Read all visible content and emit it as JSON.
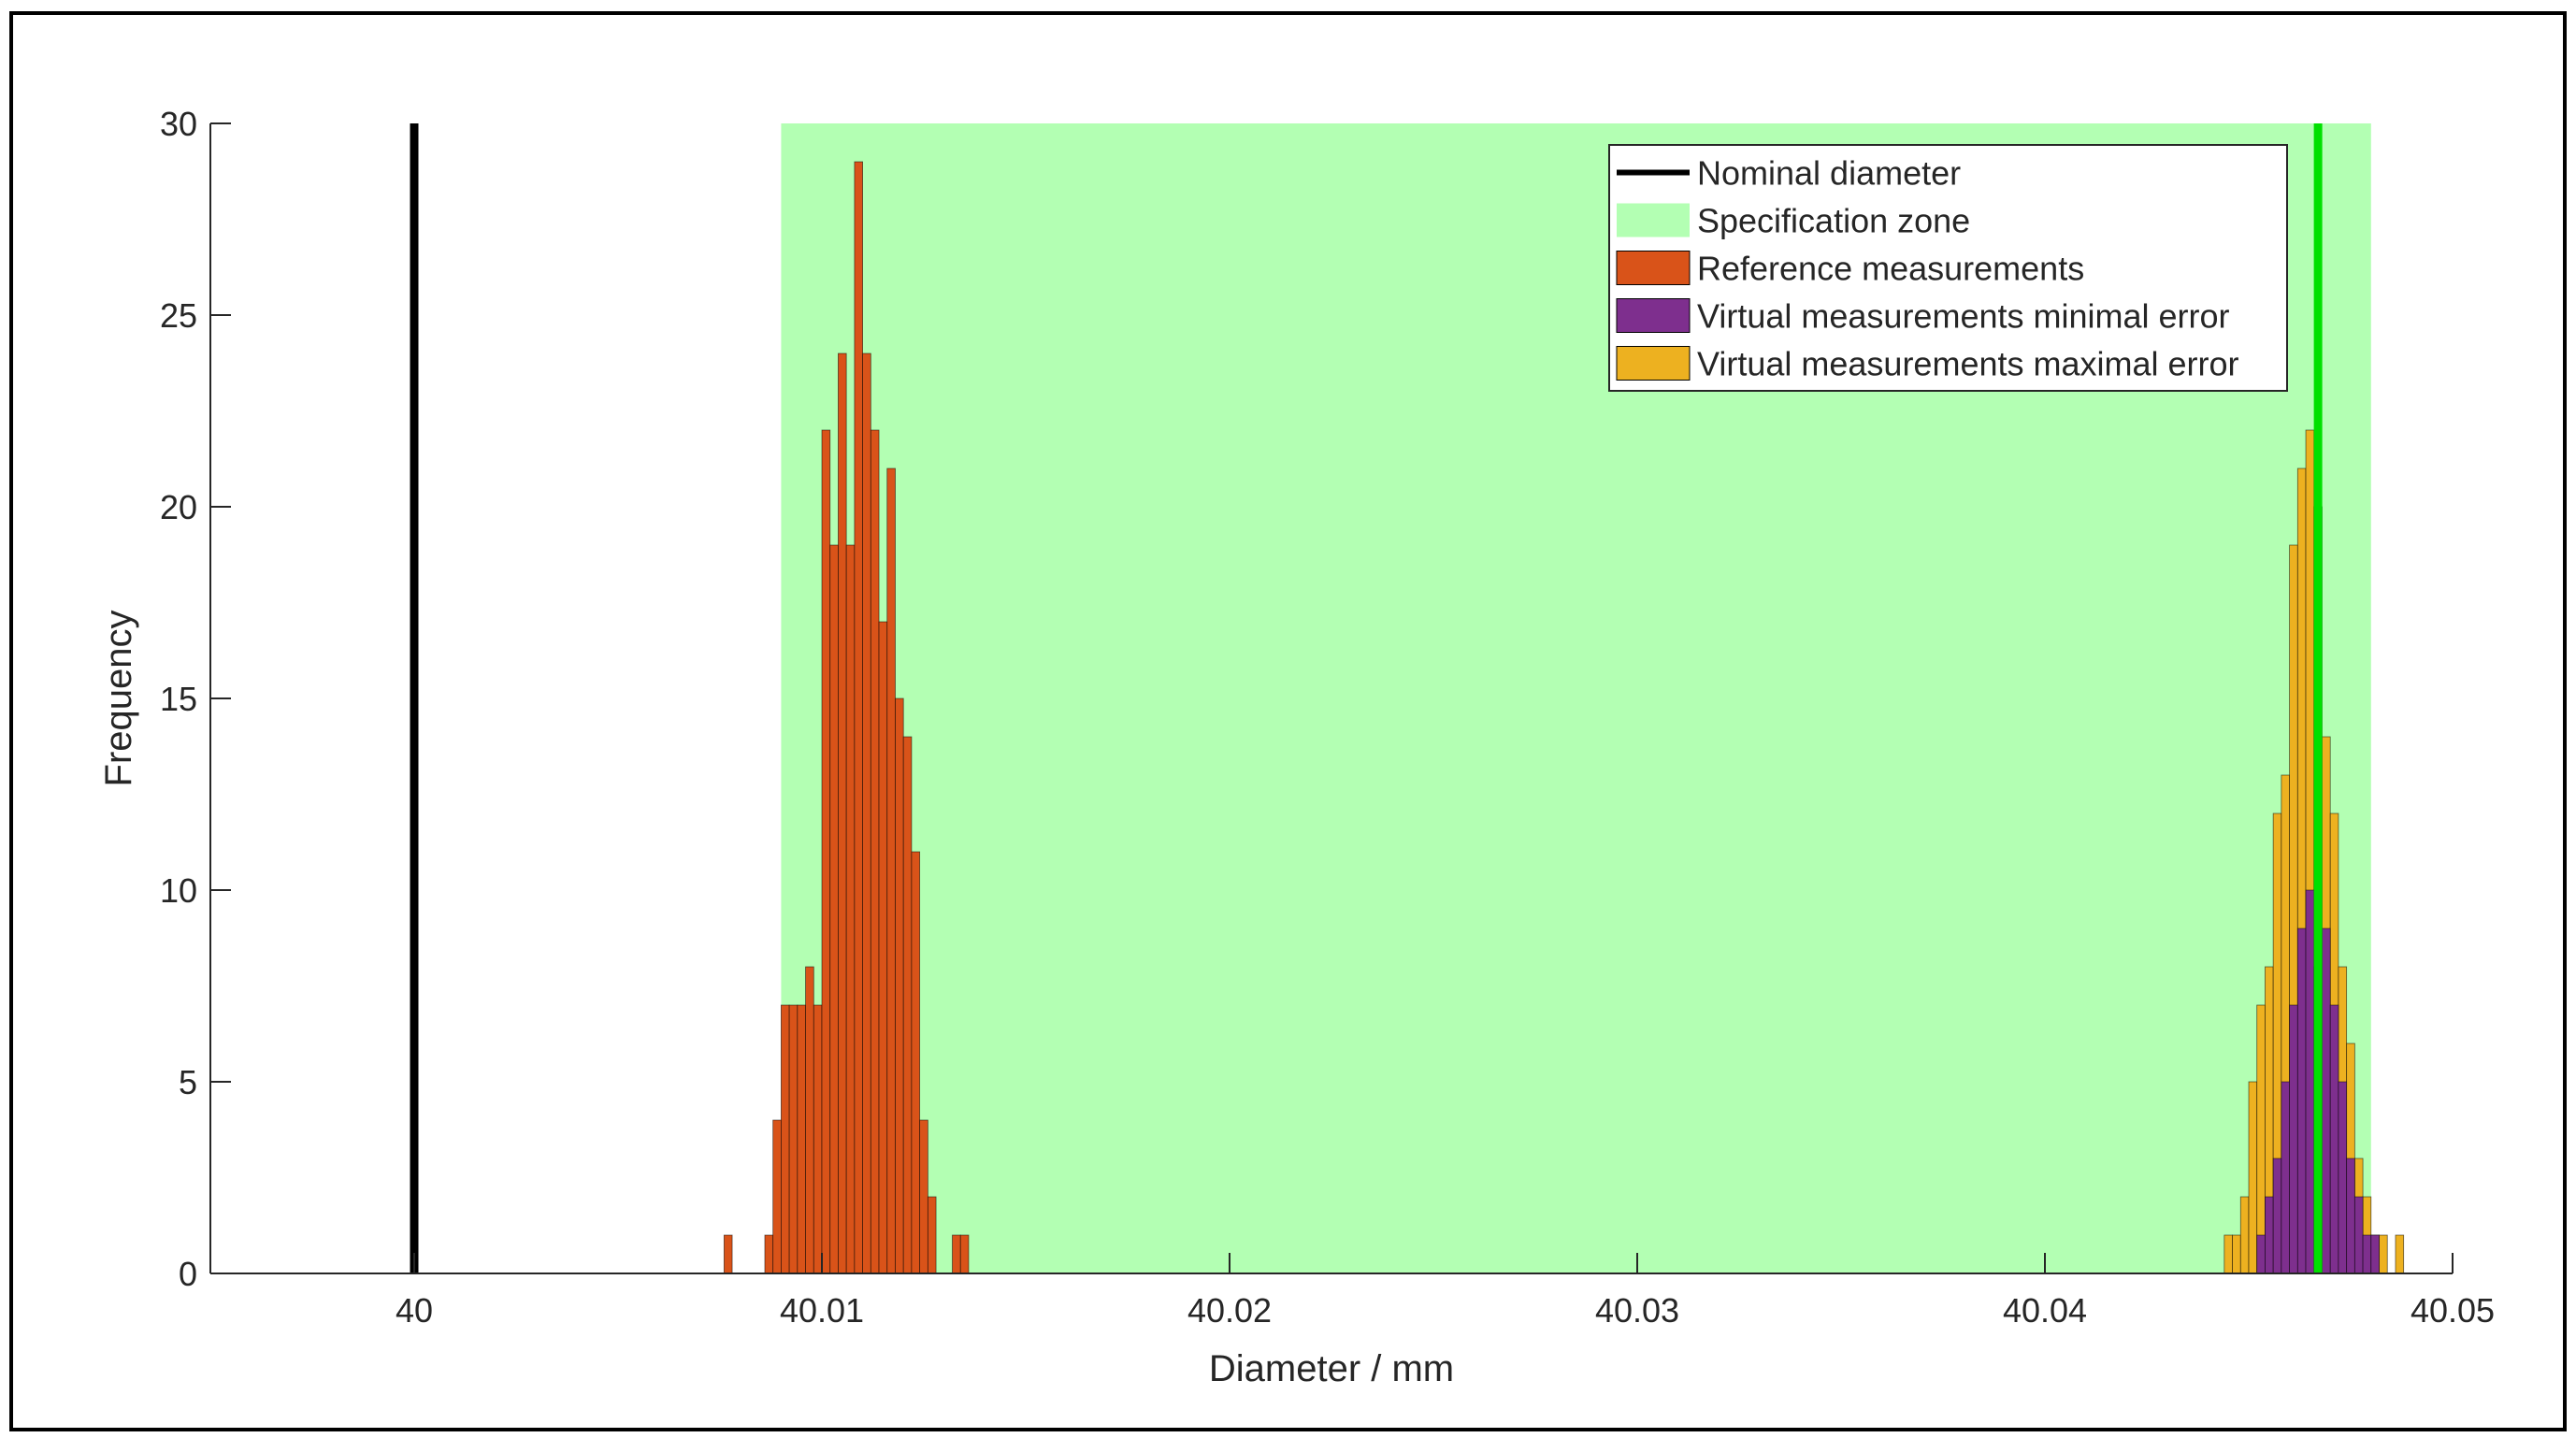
{
  "chart_data": {
    "type": "histogram",
    "xlabel": "Diameter / mm",
    "ylabel": "Frequency",
    "xlim": [
      39.995,
      40.05
    ],
    "ylim": [
      0,
      30
    ],
    "xticks": [
      40,
      40.01,
      40.02,
      40.03,
      40.04,
      40.05
    ],
    "yticks": [
      0,
      5,
      10,
      15,
      20,
      25,
      30
    ],
    "legend": "upper right",
    "reference_lines": [
      {
        "name": "Nominal diameter",
        "x": 40,
        "color": "#000000"
      },
      {
        "x": 40.0467,
        "color": "#00e000"
      }
    ],
    "spans": [
      {
        "name": "Specification zone",
        "xlim": [
          40.009,
          40.048
        ],
        "color": "#b3ffb3"
      }
    ],
    "series": [
      {
        "name": "Reference measurements",
        "color": "#d95319",
        "bins": [
          40.0076,
          40.0078,
          40.008,
          40.0082,
          40.0084,
          40.0086,
          40.0088,
          40.009,
          40.0092,
          40.0094,
          40.0096,
          40.0098,
          40.01,
          40.0102,
          40.0104,
          40.0106,
          40.0108,
          40.011,
          40.0112,
          40.0114,
          40.0116,
          40.0118,
          40.012,
          40.0122,
          40.0124,
          40.0126,
          40.0128,
          40.013,
          40.0132,
          40.0134,
          40.0136,
          40.0138
        ],
        "values": [
          1,
          0,
          0,
          0,
          0,
          1,
          4,
          7,
          7,
          7,
          8,
          7,
          22,
          19,
          24,
          19,
          29,
          24,
          22,
          17,
          21,
          15,
          14,
          11,
          4,
          2,
          0,
          0,
          1,
          1,
          0
        ]
      },
      {
        "name": "Virtual measurements minimal error",
        "color": "#7e2f8e",
        "bins": [
          40.0452,
          40.0454,
          40.0456,
          40.0458,
          40.046,
          40.0462,
          40.0464,
          40.0466,
          40.0468,
          40.047,
          40.0472,
          40.0474,
          40.0476,
          40.0478,
          40.048,
          40.0482,
          40.0484
        ],
        "values": [
          1,
          2,
          3,
          5,
          7,
          9,
          10,
          8,
          9,
          7,
          5,
          3,
          2,
          1,
          1,
          0
        ]
      },
      {
        "name": "Virtual measurements maximal error",
        "color": "#edb120",
        "bins": [
          40.0444,
          40.0446,
          40.0448,
          40.045,
          40.0452,
          40.0454,
          40.0456,
          40.0458,
          40.046,
          40.0462,
          40.0464,
          40.0466,
          40.0468,
          40.047,
          40.0472,
          40.0474,
          40.0476,
          40.0478,
          40.048,
          40.0482,
          40.0484,
          40.0486,
          40.0488
        ],
        "values": [
          1,
          1,
          2,
          5,
          7,
          8,
          12,
          13,
          19,
          21,
          22,
          20,
          14,
          12,
          8,
          6,
          3,
          2,
          1,
          1,
          0,
          1
        ]
      }
    ]
  }
}
